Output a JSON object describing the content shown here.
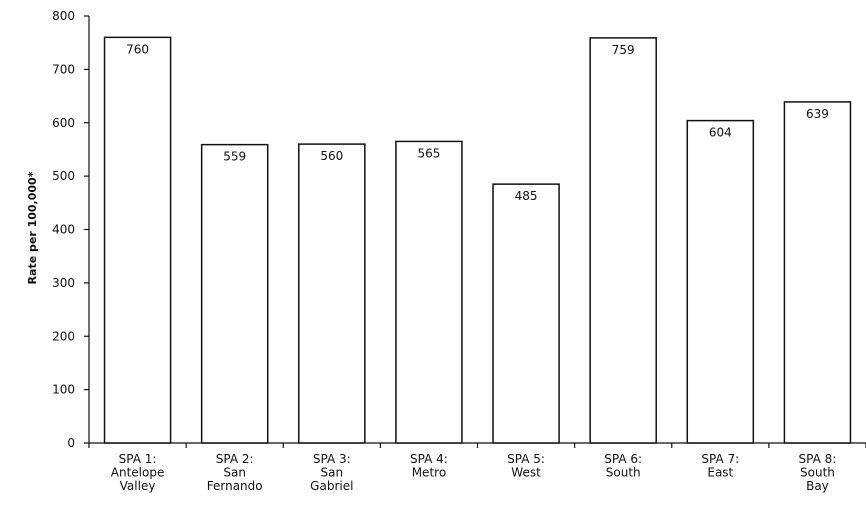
{
  "chart_data": {
    "type": "bar",
    "title": "",
    "xlabel": "",
    "ylabel": "Rate per 100,000*",
    "ylim": [
      0,
      800
    ],
    "yticks": [
      0,
      100,
      200,
      300,
      400,
      500,
      600,
      700,
      800
    ],
    "grid": false,
    "categories": [
      [
        "SPA 1:",
        "Antelope",
        "Valley"
      ],
      [
        "SPA 2:",
        "San",
        "Fernando"
      ],
      [
        "SPA 3:",
        "San",
        "Gabriel"
      ],
      [
        "SPA 4:",
        "Metro"
      ],
      [
        "SPA 5:",
        "West"
      ],
      [
        "SPA 6:",
        "South"
      ],
      [
        "SPA 7:",
        "East"
      ],
      [
        "SPA 8:",
        "South",
        "Bay"
      ]
    ],
    "values": [
      760,
      559,
      560,
      565,
      485,
      759,
      604,
      639
    ],
    "bar_fill": "#ffffff",
    "bar_stroke": "#111111"
  }
}
